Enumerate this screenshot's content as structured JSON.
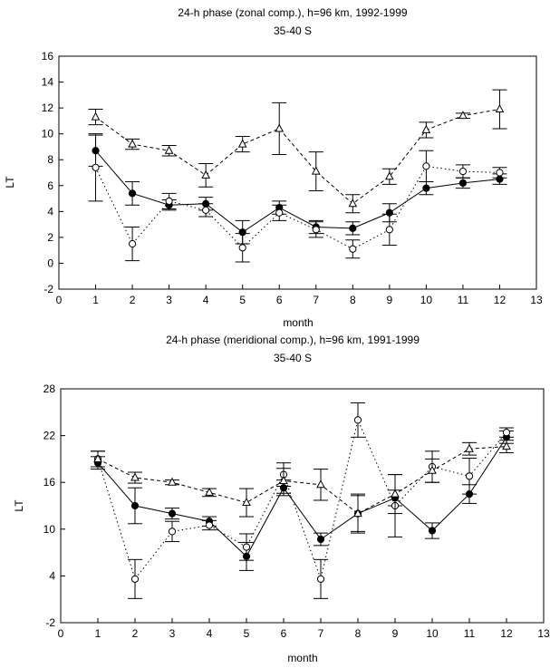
{
  "chart_data": [
    {
      "type": "line",
      "title": "24-h phase (zonal comp.), h=96 km, 1992-1999",
      "subtitle": "35-40 S",
      "xlabel": "month",
      "ylabel": "LT",
      "xlim": [
        0,
        13
      ],
      "ylim": [
        -2,
        16
      ],
      "xticks": [
        0,
        1,
        2,
        3,
        4,
        5,
        6,
        7,
        8,
        9,
        10,
        11,
        12,
        13
      ],
      "yticks": [
        -2,
        0,
        2,
        4,
        6,
        8,
        10,
        12,
        14,
        16
      ],
      "grid": false,
      "series": [
        {
          "marker": "filled-circle",
          "line": "solid",
          "x": [
            1,
            2,
            3,
            4,
            5,
            6,
            7,
            8,
            9,
            10,
            11,
            12
          ],
          "y": [
            8.7,
            5.4,
            4.5,
            4.6,
            2.4,
            4.3,
            2.8,
            2.7,
            3.9,
            5.8,
            6.2,
            6.5
          ],
          "err": [
            1.2,
            0.9,
            0.4,
            0.5,
            0.9,
            0.5,
            0.5,
            0.5,
            0.7,
            0.5,
            0.4,
            0.4
          ]
        },
        {
          "marker": "open-circle",
          "line": "dotted",
          "x": [
            1,
            2,
            3,
            4,
            5,
            6,
            7,
            8,
            9,
            10,
            11,
            12
          ],
          "y": [
            7.4,
            1.5,
            4.8,
            4.1,
            1.2,
            3.9,
            2.6,
            1.1,
            2.6,
            7.5,
            7.1,
            7.0
          ],
          "err": [
            2.6,
            1.3,
            0.6,
            0.5,
            1.1,
            0.6,
            0.6,
            0.7,
            1.2,
            1.2,
            0.5,
            0.4
          ]
        },
        {
          "marker": "open-triangle",
          "line": "dashed",
          "x": [
            1,
            2,
            3,
            4,
            5,
            6,
            7,
            8,
            9,
            10,
            11,
            12
          ],
          "y": [
            11.3,
            9.2,
            8.7,
            6.8,
            9.2,
            10.4,
            7.1,
            4.6,
            6.7,
            10.3,
            11.4,
            11.9
          ],
          "err": [
            0.6,
            0.4,
            0.4,
            0.9,
            0.6,
            2.0,
            1.5,
            0.7,
            0.6,
            0.6,
            0.2,
            1.5
          ]
        }
      ]
    },
    {
      "type": "line",
      "title": "24-h phase (meridional comp.), h=96 km, 1991-1999",
      "subtitle": "35-40 S",
      "xlabel": "month",
      "ylabel": "LT",
      "xlim": [
        0,
        13
      ],
      "ylim": [
        -2,
        28
      ],
      "xticks": [
        0,
        1,
        2,
        3,
        4,
        5,
        6,
        7,
        8,
        9,
        10,
        11,
        12,
        13
      ],
      "yticks": [
        -2,
        4,
        10,
        16,
        22,
        28
      ],
      "grid": false,
      "series": [
        {
          "marker": "filled-circle",
          "line": "solid",
          "x": [
            1,
            2,
            3,
            4,
            5,
            6,
            7,
            8,
            9,
            10,
            11,
            12
          ],
          "y": [
            18.5,
            13.0,
            12.0,
            11.0,
            6.5,
            15.3,
            8.7,
            12.0,
            14.0,
            9.8,
            14.5,
            21.8
          ],
          "err": [
            0.8,
            2.3,
            0.7,
            0.6,
            1.8,
            1.0,
            0.8,
            2.5,
            1.0,
            1.0,
            1.2,
            0.8
          ]
        },
        {
          "marker": "open-circle",
          "line": "dotted",
          "x": [
            1,
            2,
            3,
            4,
            5,
            6,
            7,
            8,
            9,
            10,
            11,
            12
          ],
          "y": [
            19.0,
            3.6,
            9.7,
            10.5,
            7.7,
            17.0,
            3.6,
            24.0,
            13.0,
            18.0,
            16.8,
            22.4
          ],
          "err": [
            1.0,
            2.5,
            1.3,
            0.6,
            1.7,
            1.5,
            2.5,
            2.2,
            4.0,
            2.0,
            2.3,
            0.6
          ]
        },
        {
          "marker": "open-triangle",
          "line": "dashed",
          "x": [
            1,
            2,
            3,
            4,
            5,
            6,
            7,
            8,
            9,
            10,
            11,
            12
          ],
          "y": [
            19.0,
            16.6,
            16.0,
            14.7,
            13.4,
            16.2,
            15.7,
            12.0,
            14.5,
            17.5,
            20.3,
            20.6
          ],
          "err": [
            1.0,
            0.7,
            0.3,
            0.5,
            1.8,
            1.6,
            2.0,
            2.3,
            2.5,
            1.5,
            0.8,
            0.8
          ]
        }
      ]
    }
  ]
}
